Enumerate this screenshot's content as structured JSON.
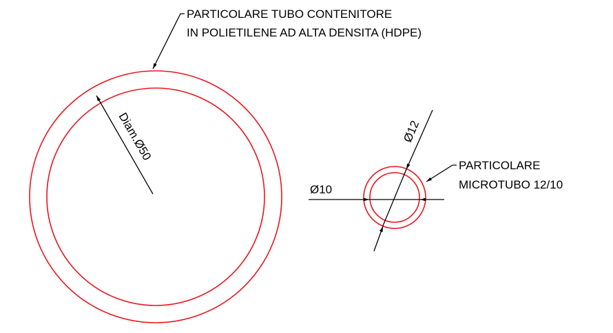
{
  "labels": {
    "container_tube": {
      "lines": [
        "PARTICOLARE TUBO CONTENITORE",
        "IN POLIETILENE AD ALTA DENSITA (HDPE)"
      ]
    },
    "container_diameter": "Diam.Ø50",
    "microtube_outer_diameter": "Ø12",
    "microtube_inner_diameter": "Ø10",
    "microtube": {
      "lines": [
        "PARTICOLARE",
        "MICROTUBO 12/10"
      ]
    }
  }
}
